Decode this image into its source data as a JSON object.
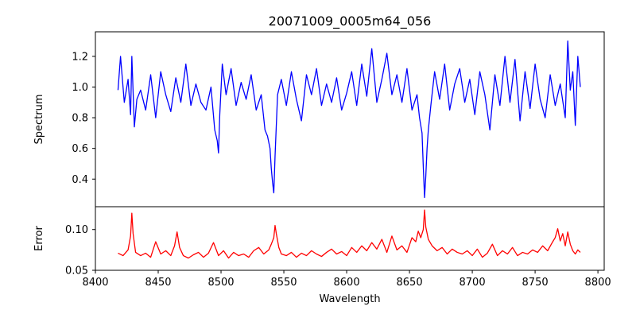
{
  "chart_data": [
    {
      "type": "line",
      "panel": "spectrum",
      "title": "20071009_0005m64_056",
      "xlabel": "",
      "ylabel": "Spectrum",
      "xlim": [
        8400,
        8805
      ],
      "ylim": [
        0.22,
        1.36
      ],
      "xticks": [
        8400,
        8450,
        8500,
        8550,
        8600,
        8650,
        8700,
        8750,
        8800
      ],
      "xtick_labels_shown": false,
      "yticks": [
        0.4,
        0.6,
        0.8,
        1.0,
        1.2
      ],
      "ytick_labels": [
        "0.4",
        "0.6",
        "0.8",
        "1.0",
        "1.2"
      ],
      "color": "#0000ff",
      "grid": false,
      "series": [
        {
          "x": [
            8418,
            8420,
            8423,
            8426,
            8428,
            8429,
            8431,
            8433,
            8436,
            8440,
            8444,
            8448,
            8452,
            8456,
            8460,
            8464,
            8468,
            8472,
            8476,
            8480,
            8484,
            8488,
            8492,
            8495,
            8497,
            8498,
            8499,
            8501,
            8504,
            8508,
            8512,
            8516,
            8520,
            8524,
            8528,
            8532,
            8535,
            8537,
            8539,
            8540,
            8541,
            8542,
            8543,
            8545,
            8548,
            8552,
            8556,
            8560,
            8564,
            8568,
            8572,
            8576,
            8580,
            8584,
            8588,
            8592,
            8596,
            8600,
            8604,
            8608,
            8612,
            8616,
            8620,
            8624,
            8628,
            8632,
            8636,
            8640,
            8644,
            8648,
            8652,
            8656,
            8658,
            8660,
            8661,
            8662,
            8663,
            8664,
            8665,
            8667,
            8670,
            8674,
            8678,
            8682,
            8686,
            8690,
            8694,
            8698,
            8702,
            8706,
            8710,
            8714,
            8718,
            8722,
            8726,
            8730,
            8734,
            8738,
            8742,
            8746,
            8750,
            8754,
            8758,
            8762,
            8766,
            8770,
            8774,
            8776,
            8778,
            8780,
            8782,
            8784,
            8786
          ],
          "y": [
            0.98,
            1.2,
            0.9,
            1.05,
            0.82,
            1.2,
            0.74,
            0.92,
            0.98,
            0.85,
            1.08,
            0.8,
            1.1,
            0.95,
            0.84,
            1.06,
            0.9,
            1.15,
            0.88,
            1.02,
            0.9,
            0.85,
            1.0,
            0.72,
            0.65,
            0.57,
            0.82,
            1.15,
            0.95,
            1.12,
            0.88,
            1.03,
            0.92,
            1.08,
            0.85,
            0.95,
            0.72,
            0.68,
            0.6,
            0.47,
            0.38,
            0.31,
            0.55,
            0.95,
            1.05,
            0.88,
            1.1,
            0.92,
            0.78,
            1.08,
            0.95,
            1.12,
            0.88,
            1.02,
            0.9,
            1.06,
            0.85,
            0.96,
            1.1,
            0.88,
            1.15,
            0.94,
            1.25,
            0.9,
            1.05,
            1.22,
            0.95,
            1.08,
            0.9,
            1.12,
            0.85,
            0.95,
            0.8,
            0.7,
            0.48,
            0.28,
            0.42,
            0.6,
            0.72,
            0.88,
            1.1,
            0.92,
            1.15,
            0.85,
            1.02,
            1.12,
            0.9,
            1.05,
            0.82,
            1.1,
            0.95,
            0.72,
            1.08,
            0.88,
            1.2,
            0.9,
            1.18,
            0.78,
            1.1,
            0.86,
            1.15,
            0.92,
            0.8,
            1.08,
            0.88,
            1.02,
            0.8,
            1.3,
            0.98,
            1.1,
            0.75,
            1.2,
            1.0
          ]
        }
      ]
    },
    {
      "type": "line",
      "panel": "error",
      "title": "",
      "xlabel": "Wavelength",
      "ylabel": "Error",
      "xlim": [
        8400,
        8805
      ],
      "ylim": [
        0.05,
        0.128
      ],
      "xticks": [
        8400,
        8450,
        8500,
        8550,
        8600,
        8650,
        8700,
        8750,
        8800
      ],
      "xtick_labels": [
        "8400",
        "8450",
        "8500",
        "8550",
        "8600",
        "8650",
        "8700",
        "8750",
        "8800"
      ],
      "yticks": [
        0.05,
        0.1
      ],
      "ytick_labels": [
        "0.05",
        "0.10"
      ],
      "color": "#ff0000",
      "grid": false,
      "series": [
        {
          "x": [
            8418,
            8422,
            8426,
            8428,
            8429,
            8430,
            8432,
            8436,
            8440,
            8444,
            8448,
            8452,
            8456,
            8460,
            8463,
            8465,
            8467,
            8470,
            8474,
            8478,
            8482,
            8486,
            8490,
            8494,
            8498,
            8502,
            8506,
            8510,
            8514,
            8518,
            8522,
            8526,
            8530,
            8534,
            8538,
            8540,
            8542,
            8543,
            8544,
            8546,
            8548,
            8552,
            8556,
            8560,
            8564,
            8568,
            8572,
            8576,
            8580,
            8584,
            8588,
            8592,
            8596,
            8600,
            8604,
            8608,
            8612,
            8616,
            8620,
            8624,
            8628,
            8632,
            8636,
            8640,
            8644,
            8648,
            8652,
            8655,
            8657,
            8659,
            8661,
            8662,
            8663,
            8665,
            8668,
            8672,
            8676,
            8680,
            8684,
            8688,
            8692,
            8696,
            8700,
            8704,
            8708,
            8712,
            8716,
            8720,
            8724,
            8728,
            8732,
            8736,
            8740,
            8744,
            8748,
            8752,
            8756,
            8760,
            8764,
            8766,
            8768,
            8770,
            8772,
            8774,
            8776,
            8778,
            8780,
            8782,
            8784,
            8786
          ],
          "y": [
            0.071,
            0.068,
            0.075,
            0.092,
            0.12,
            0.095,
            0.072,
            0.068,
            0.071,
            0.066,
            0.085,
            0.07,
            0.074,
            0.068,
            0.08,
            0.097,
            0.078,
            0.068,
            0.065,
            0.069,
            0.072,
            0.066,
            0.071,
            0.084,
            0.068,
            0.074,
            0.065,
            0.072,
            0.068,
            0.07,
            0.066,
            0.074,
            0.078,
            0.07,
            0.075,
            0.082,
            0.09,
            0.105,
            0.095,
            0.078,
            0.07,
            0.068,
            0.072,
            0.066,
            0.071,
            0.068,
            0.074,
            0.07,
            0.067,
            0.072,
            0.076,
            0.07,
            0.073,
            0.068,
            0.078,
            0.072,
            0.08,
            0.074,
            0.084,
            0.076,
            0.088,
            0.072,
            0.092,
            0.075,
            0.08,
            0.072,
            0.09,
            0.085,
            0.098,
            0.09,
            0.1,
            0.124,
            0.103,
            0.088,
            0.08,
            0.074,
            0.078,
            0.07,
            0.076,
            0.072,
            0.07,
            0.074,
            0.068,
            0.076,
            0.066,
            0.071,
            0.082,
            0.068,
            0.074,
            0.07,
            0.078,
            0.068,
            0.072,
            0.07,
            0.075,
            0.072,
            0.08,
            0.074,
            0.085,
            0.09,
            0.101,
            0.086,
            0.095,
            0.08,
            0.097,
            0.082,
            0.074,
            0.07,
            0.075,
            0.072
          ]
        }
      ]
    }
  ]
}
